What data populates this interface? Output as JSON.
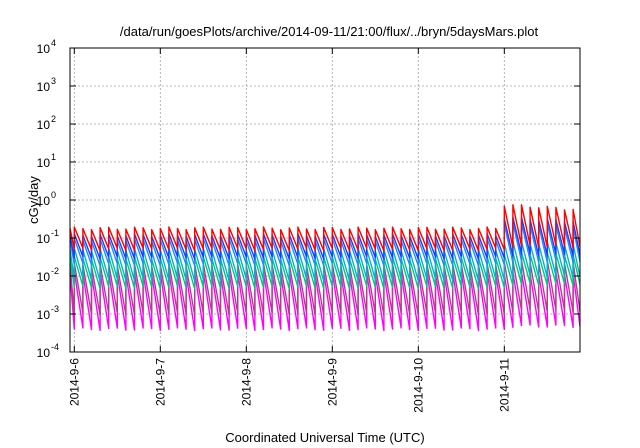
{
  "chart_data": {
    "type": "line",
    "title": "/data/run/goesPlots/archive/2014-09-11/21:00/flux/../bryn/5daysMars.plot",
    "xlabel": "Coordinated Universal Time (UTC)",
    "ylabel": "cGy/day",
    "y_scale": "log",
    "ylim": [
      0.0001,
      10000
    ],
    "y_ticks": [
      {
        "base": "10",
        "exp": "4",
        "value": 10000
      },
      {
        "base": "10",
        "exp": "3",
        "value": 1000
      },
      {
        "base": "10",
        "exp": "2",
        "value": 100
      },
      {
        "base": "10",
        "exp": "1",
        "value": 10
      },
      {
        "base": "10",
        "exp": "0",
        "value": 1
      },
      {
        "base": "10",
        "exp": "-1",
        "value": 0.1
      },
      {
        "base": "10",
        "exp": "-2",
        "value": 0.01
      },
      {
        "base": "10",
        "exp": "-3",
        "value": 0.001
      },
      {
        "base": "10",
        "exp": "-4",
        "value": 0.0001
      }
    ],
    "x_ticks": [
      {
        "label": "2014-9-6",
        "day": 0
      },
      {
        "label": "2014-9-7",
        "day": 1
      },
      {
        "label": "2014-9-8",
        "day": 2
      },
      {
        "label": "2014-9-9",
        "day": 3
      },
      {
        "label": "2014-9-10",
        "day": 4
      },
      {
        "label": "2014-9-11",
        "day": 5
      }
    ],
    "x_range_days": [
      -0.05,
      5.88
    ],
    "grid": true,
    "sawtooth_period_days": 0.1,
    "enhancement_start_day": 4.97,
    "series": [
      {
        "color": "#ff0000",
        "peak": 0.18,
        "trough": 0.05,
        "enhanced_peak": 0.75
      },
      {
        "color": "#1e3cff",
        "peak": 0.12,
        "trough": 0.03,
        "enhanced_peak": 0.35
      },
      {
        "color": "#1e8cff",
        "peak": 0.09,
        "trough": 0.02,
        "enhanced_peak": 0.25
      },
      {
        "color": "#00b4c8",
        "peak": 0.05,
        "trough": 0.008,
        "enhanced_peak": 0.08
      },
      {
        "color": "#00c87a",
        "peak": 0.03,
        "trough": 0.005,
        "enhanced_peak": 0.04
      },
      {
        "color": "#b43c8c",
        "peak": 0.02,
        "trough": 0.001,
        "enhanced_peak": 0.025
      },
      {
        "color": "#ff00ff",
        "peak": 0.012,
        "trough": 0.0004,
        "enhanced_peak": 0.012
      }
    ]
  }
}
